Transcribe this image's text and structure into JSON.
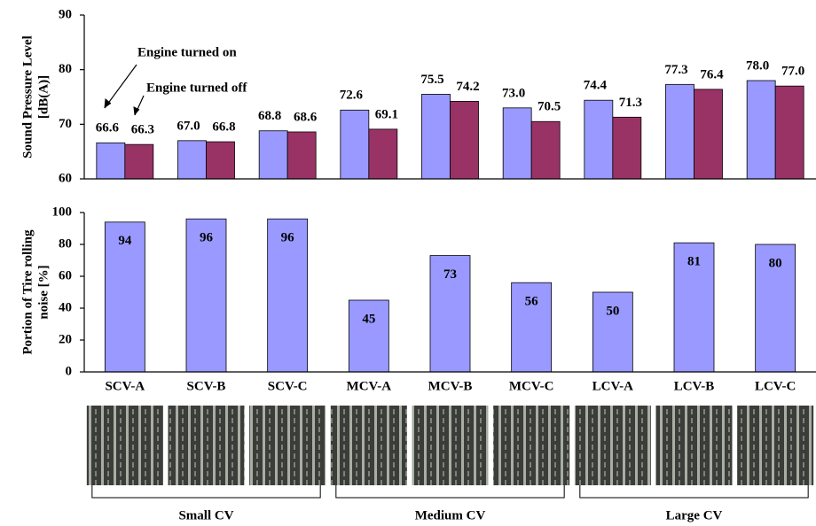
{
  "chart_data": [
    {
      "type": "bar",
      "ylabel": [
        "Sound Pressure Level",
        "[dB(A)]"
      ],
      "ylim": [
        60,
        90
      ],
      "yticks": [
        60,
        70,
        80,
        90
      ],
      "grid": false,
      "series": [
        {
          "name": "Engine turned on",
          "color": "#9999ff",
          "values": [
            66.6,
            67.0,
            68.8,
            72.6,
            75.5,
            73.0,
            74.4,
            77.3,
            78.0
          ],
          "value_labels": [
            "66.6",
            "67.0",
            "68.8",
            "72.6",
            "75.5",
            "73.0",
            "74.4",
            "77.3",
            "78.0"
          ]
        },
        {
          "name": "Engine turned off",
          "color": "#993366",
          "values": [
            66.3,
            66.8,
            68.6,
            69.1,
            74.2,
            70.5,
            71.3,
            76.4,
            77.0
          ],
          "value_labels": [
            "66.3",
            "66.8",
            "68.6",
            "69.1",
            "74.2",
            "70.5",
            "71.3",
            "76.4",
            "77.0"
          ]
        }
      ]
    },
    {
      "type": "bar",
      "ylabel": [
        "Portion of Tire rolling",
        "noise [%]"
      ],
      "ylim": [
        0,
        100
      ],
      "yticks": [
        0,
        20,
        40,
        60,
        80,
        100
      ],
      "grid": false,
      "color": "#9999ff",
      "categories": [
        "SCV-A",
        "SCV-B",
        "SCV-C",
        "MCV-A",
        "MCV-B",
        "MCV-C",
        "LCV-A",
        "LCV-B",
        "LCV-C"
      ],
      "values": [
        94,
        96,
        96,
        45,
        73,
        56,
        50,
        81,
        80
      ],
      "groups": [
        "Small CV",
        "Medium CV",
        "Large CV"
      ]
    }
  ]
}
